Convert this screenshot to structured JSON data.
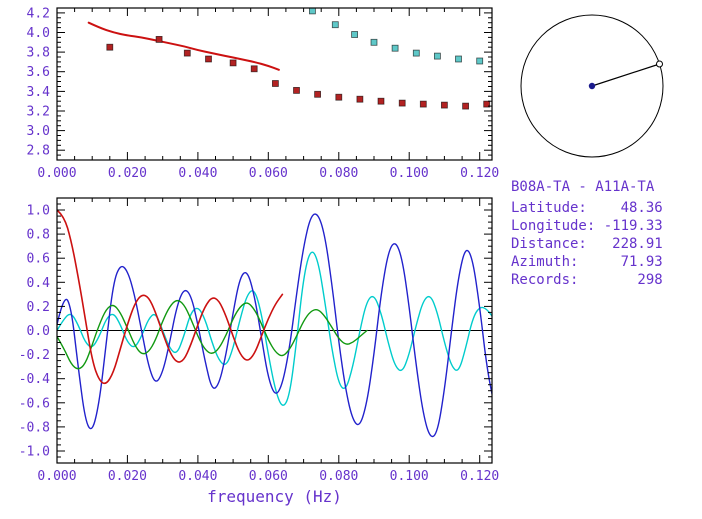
{
  "colors": {
    "axis_text": "#6633cc",
    "frame": "#000000",
    "red": "#cc1111",
    "red_square": "#b22222",
    "cyan_square": "#5fc8c8",
    "blue": "#2222cc",
    "cyan": "#00cccc",
    "green": "#119911",
    "inset_dot": "#1a1a8c"
  },
  "station_info": {
    "lines": [
      "B08A-TA - A11A-TA",
      "Latitude:    48.36",
      "Longitude: -119.33",
      "Distance:   228.91",
      "Azimuth:     71.93",
      "Records:       298"
    ]
  },
  "inset": {
    "azimuth_deg": 71.93
  },
  "chart_data": [
    {
      "type": "scatter",
      "title": "",
      "xlabel": "",
      "ylabel": "",
      "xlim": [
        0,
        0.1235
      ],
      "ylim": [
        2.7,
        4.25
      ],
      "xticks": {
        "major": [
          0,
          0.02,
          0.04,
          0.06,
          0.08,
          0.1,
          0.12
        ],
        "labels": [
          "0.000",
          "0.020",
          "0.040",
          "0.060",
          "0.080",
          "0.100",
          "0.120"
        ],
        "minor_step": 0.005
      },
      "yticks": {
        "major": [
          2.8,
          3.0,
          3.2,
          3.4,
          3.6,
          3.8,
          4.0,
          4.2
        ],
        "labels": [
          "2.8",
          "3.0",
          "3.2",
          "3.4",
          "3.6",
          "3.8",
          "4.0",
          "4.2"
        ],
        "minor_step": 0.05
      },
      "series": [
        {
          "name": "predicted-dispersion-line",
          "type": "line",
          "color_key": "red",
          "width": 2,
          "points": [
            [
              0.009,
              4.1
            ],
            [
              0.012,
              4.05
            ],
            [
              0.016,
              4.0
            ],
            [
              0.02,
              3.97
            ],
            [
              0.024,
              3.95
            ],
            [
              0.028,
              3.92
            ],
            [
              0.032,
              3.89
            ],
            [
              0.036,
              3.86
            ],
            [
              0.04,
              3.82
            ],
            [
              0.044,
              3.79
            ],
            [
              0.048,
              3.76
            ],
            [
              0.052,
              3.73
            ],
            [
              0.056,
              3.7
            ],
            [
              0.06,
              3.66
            ],
            [
              0.063,
              3.62
            ]
          ]
        },
        {
          "name": "measured-dispersion-red-squares",
          "type": "scatter",
          "marker": "square",
          "color_key": "red_square",
          "points": [
            [
              0.015,
              3.85
            ],
            [
              0.029,
              3.93
            ],
            [
              0.037,
              3.79
            ],
            [
              0.043,
              3.73
            ],
            [
              0.05,
              3.69
            ],
            [
              0.056,
              3.63
            ],
            [
              0.062,
              3.48
            ],
            [
              0.068,
              3.41
            ],
            [
              0.074,
              3.37
            ],
            [
              0.08,
              3.34
            ],
            [
              0.086,
              3.32
            ],
            [
              0.092,
              3.3
            ],
            [
              0.098,
              3.28
            ],
            [
              0.104,
              3.27
            ],
            [
              0.11,
              3.26
            ],
            [
              0.116,
              3.25
            ],
            [
              0.122,
              3.27
            ]
          ]
        },
        {
          "name": "measured-dispersion-cyan-squares",
          "type": "scatter",
          "marker": "square",
          "color_key": "cyan_square",
          "points": [
            [
              0.0725,
              4.22
            ],
            [
              0.079,
              4.08
            ],
            [
              0.0845,
              3.98
            ],
            [
              0.09,
              3.9
            ],
            [
              0.096,
              3.84
            ],
            [
              0.102,
              3.79
            ],
            [
              0.108,
              3.76
            ],
            [
              0.114,
              3.73
            ],
            [
              0.12,
              3.71
            ]
          ]
        }
      ]
    },
    {
      "type": "line",
      "title": "",
      "xlabel": "frequency (Hz)",
      "ylabel": "",
      "xlim": [
        0,
        0.1235
      ],
      "ylim": [
        -1.1,
        1.1
      ],
      "zero_line": true,
      "xticks": {
        "major": [
          0,
          0.02,
          0.04,
          0.06,
          0.08,
          0.1,
          0.12
        ],
        "labels": [
          "0.000",
          "0.020",
          "0.040",
          "0.060",
          "0.080",
          "0.100",
          "0.120"
        ],
        "minor_step": 0.005
      },
      "yticks": {
        "major": [
          -1.0,
          -0.8,
          -0.6,
          -0.4,
          -0.2,
          0.0,
          0.2,
          0.4,
          0.6,
          0.8,
          1.0
        ],
        "labels": [
          "-1.0",
          "-0.8",
          "-0.6",
          "-0.4",
          "-0.2",
          "0.0",
          "0.2",
          "0.4",
          "0.6",
          "0.8",
          "1.0"
        ],
        "minor_step": 0.05
      },
      "series": [
        {
          "name": "waveform-cyan",
          "color_key": "cyan",
          "width": 1.4,
          "x0": 0,
          "dx": 0.002,
          "values": [
            0,
            0.1,
            0.15,
            0.05,
            -0.1,
            -0.15,
            -0.05,
            0.1,
            0.15,
            0.05,
            -0.1,
            -0.15,
            -0.05,
            0.1,
            0.15,
            0,
            -0.15,
            -0.2,
            -0.05,
            0.15,
            0.2,
            0.1,
            -0.1,
            -0.25,
            -0.3,
            -0.15,
            0.1,
            0.3,
            0.35,
            0.15,
            -0.2,
            -0.5,
            -0.65,
            -0.55,
            -0.1,
            0.45,
            0.68,
            0.6,
            0.25,
            -0.15,
            -0.45,
            -0.5,
            -0.3,
            0,
            0.25,
            0.3,
            0.15,
            -0.1,
            -0.3,
            -0.35,
            -0.2,
            0.05,
            0.25,
            0.3,
            0.15,
            -0.1,
            -0.3,
            -0.35,
            -0.15,
            0.1,
            0.2,
            0.18,
            0.1
          ]
        },
        {
          "name": "waveform-blue",
          "color_key": "blue",
          "width": 1.4,
          "x0": 0,
          "dx": 0.002,
          "values": [
            0.05,
            0.3,
            0.2,
            -0.3,
            -0.75,
            -0.85,
            -0.6,
            -0.1,
            0.4,
            0.55,
            0.5,
            0.3,
            0,
            -0.3,
            -0.45,
            -0.35,
            -0.1,
            0.2,
            0.35,
            0.3,
            0.05,
            -0.25,
            -0.5,
            -0.45,
            -0.2,
            0.15,
            0.45,
            0.5,
            0.3,
            -0.05,
            -0.4,
            -0.55,
            -0.45,
            -0.15,
            0.3,
            0.7,
            0.95,
            0.98,
            0.8,
            0.4,
            -0.1,
            -0.5,
            -0.75,
            -0.8,
            -0.6,
            -0.2,
            0.3,
            0.65,
            0.75,
            0.6,
            0.2,
            -0.3,
            -0.7,
            -0.9,
            -0.85,
            -0.5,
            0,
            0.45,
            0.7,
            0.6,
            0.2,
            -0.3,
            -0.6
          ]
        },
        {
          "name": "waveform-green",
          "color_key": "green",
          "width": 1.4,
          "x0": 0,
          "dx": 0.002,
          "values": [
            -0.05,
            -0.15,
            -0.28,
            -0.33,
            -0.28,
            -0.12,
            0.05,
            0.18,
            0.22,
            0.15,
            0.02,
            -0.12,
            -0.2,
            -0.18,
            -0.08,
            0.08,
            0.2,
            0.26,
            0.22,
            0.1,
            -0.05,
            -0.16,
            -0.2,
            -0.15,
            -0.04,
            0.1,
            0.2,
            0.24,
            0.18,
            0.06,
            -0.08,
            -0.18,
            -0.22,
            -0.16,
            -0.05,
            0.08,
            0.16,
            0.18,
            0.12,
            0.03,
            -0.07,
            -0.12,
            -0.1,
            -0.05,
            0
          ]
        },
        {
          "name": "waveform-red",
          "color_key": "red",
          "width": 1.6,
          "x0": 0,
          "dx": 0.002,
          "values": [
            1,
            0.95,
            0.75,
            0.45,
            0.1,
            -0.25,
            -0.42,
            -0.45,
            -0.35,
            -0.15,
            0.05,
            0.22,
            0.3,
            0.28,
            0.15,
            -0.02,
            -0.18,
            -0.27,
            -0.25,
            -0.12,
            0.05,
            0.2,
            0.28,
            0.25,
            0.12,
            -0.05,
            -0.2,
            -0.26,
            -0.2,
            -0.05,
            0.1,
            0.22,
            0.3
          ]
        }
      ]
    }
  ]
}
